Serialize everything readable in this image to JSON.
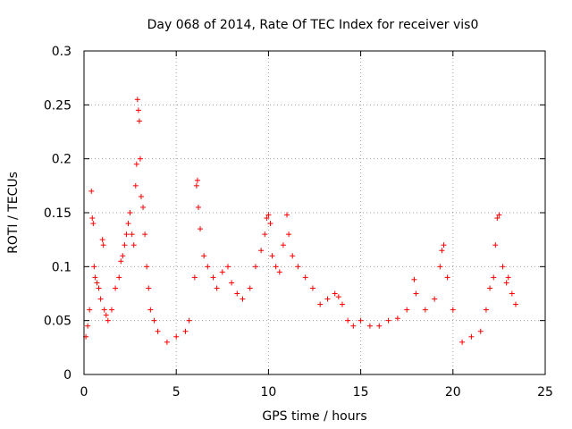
{
  "chart_data": {
    "type": "scatter",
    "title": "Day 068 of 2014, Rate Of TEC Index for receiver vis0",
    "xlabel": "GPS time / hours",
    "ylabel": "ROTI / TECUs",
    "xlim": [
      0,
      25
    ],
    "ylim": [
      0,
      0.3
    ],
    "xticks": [
      0,
      5,
      10,
      15,
      20,
      25
    ],
    "yticks": [
      0,
      0.05,
      0.1,
      0.15,
      0.2,
      0.25,
      0.3
    ],
    "xtick_labels": [
      "0",
      "5",
      "10",
      "15",
      "20",
      "25"
    ],
    "ytick_labels": [
      "0",
      "0.05",
      "0.1",
      "0.15",
      "0.2",
      "0.25",
      "0.3"
    ],
    "grid": true,
    "marker": "+",
    "color": "#ff0000",
    "series": [
      {
        "name": "vis0",
        "x": [
          0.1,
          0.2,
          0.3,
          0.4,
          0.45,
          0.5,
          0.55,
          0.6,
          0.7,
          0.8,
          0.9,
          1.0,
          1.05,
          1.1,
          1.2,
          1.3,
          1.5,
          1.7,
          1.9,
          2.0,
          2.1,
          2.2,
          2.3,
          2.4,
          2.5,
          2.6,
          2.7,
          2.8,
          2.85,
          2.9,
          2.95,
          3.0,
          3.05,
          3.1,
          3.2,
          3.3,
          3.4,
          3.5,
          3.6,
          3.8,
          4.0,
          4.5,
          5.0,
          5.5,
          5.7,
          6.0,
          6.1,
          6.15,
          6.2,
          6.3,
          6.5,
          6.7,
          7.0,
          7.2,
          7.5,
          7.8,
          8.0,
          8.3,
          8.6,
          9.0,
          9.3,
          9.6,
          9.8,
          9.9,
          10.0,
          10.1,
          10.2,
          10.4,
          10.6,
          10.8,
          11.0,
          11.1,
          11.3,
          11.6,
          12.0,
          12.4,
          12.8,
          13.2,
          13.6,
          13.8,
          14.0,
          14.3,
          14.6,
          15.0,
          15.5,
          16.0,
          16.5,
          17.0,
          17.5,
          17.9,
          18.0,
          18.5,
          19.0,
          19.3,
          19.4,
          19.5,
          19.7,
          20.0,
          20.5,
          21.0,
          21.5,
          21.8,
          22.0,
          22.2,
          22.3,
          22.4,
          22.5,
          22.7,
          22.9,
          23.0,
          23.2,
          23.4
        ],
        "y": [
          0.035,
          0.045,
          0.06,
          0.17,
          0.145,
          0.14,
          0.1,
          0.09,
          0.085,
          0.08,
          0.07,
          0.125,
          0.12,
          0.06,
          0.055,
          0.05,
          0.06,
          0.08,
          0.09,
          0.105,
          0.11,
          0.12,
          0.13,
          0.14,
          0.15,
          0.13,
          0.12,
          0.175,
          0.195,
          0.255,
          0.245,
          0.235,
          0.2,
          0.165,
          0.155,
          0.13,
          0.1,
          0.08,
          0.06,
          0.05,
          0.04,
          0.03,
          0.035,
          0.04,
          0.05,
          0.09,
          0.175,
          0.18,
          0.155,
          0.135,
          0.11,
          0.1,
          0.09,
          0.08,
          0.095,
          0.1,
          0.085,
          0.075,
          0.07,
          0.08,
          0.1,
          0.115,
          0.13,
          0.145,
          0.148,
          0.14,
          0.11,
          0.1,
          0.095,
          0.12,
          0.148,
          0.13,
          0.11,
          0.1,
          0.09,
          0.08,
          0.065,
          0.07,
          0.075,
          0.072,
          0.065,
          0.05,
          0.045,
          0.05,
          0.045,
          0.045,
          0.05,
          0.052,
          0.06,
          0.088,
          0.075,
          0.06,
          0.07,
          0.1,
          0.115,
          0.12,
          0.09,
          0.06,
          0.03,
          0.035,
          0.04,
          0.06,
          0.08,
          0.09,
          0.12,
          0.145,
          0.148,
          0.1,
          0.085,
          0.09,
          0.075,
          0.065
        ]
      }
    ]
  }
}
